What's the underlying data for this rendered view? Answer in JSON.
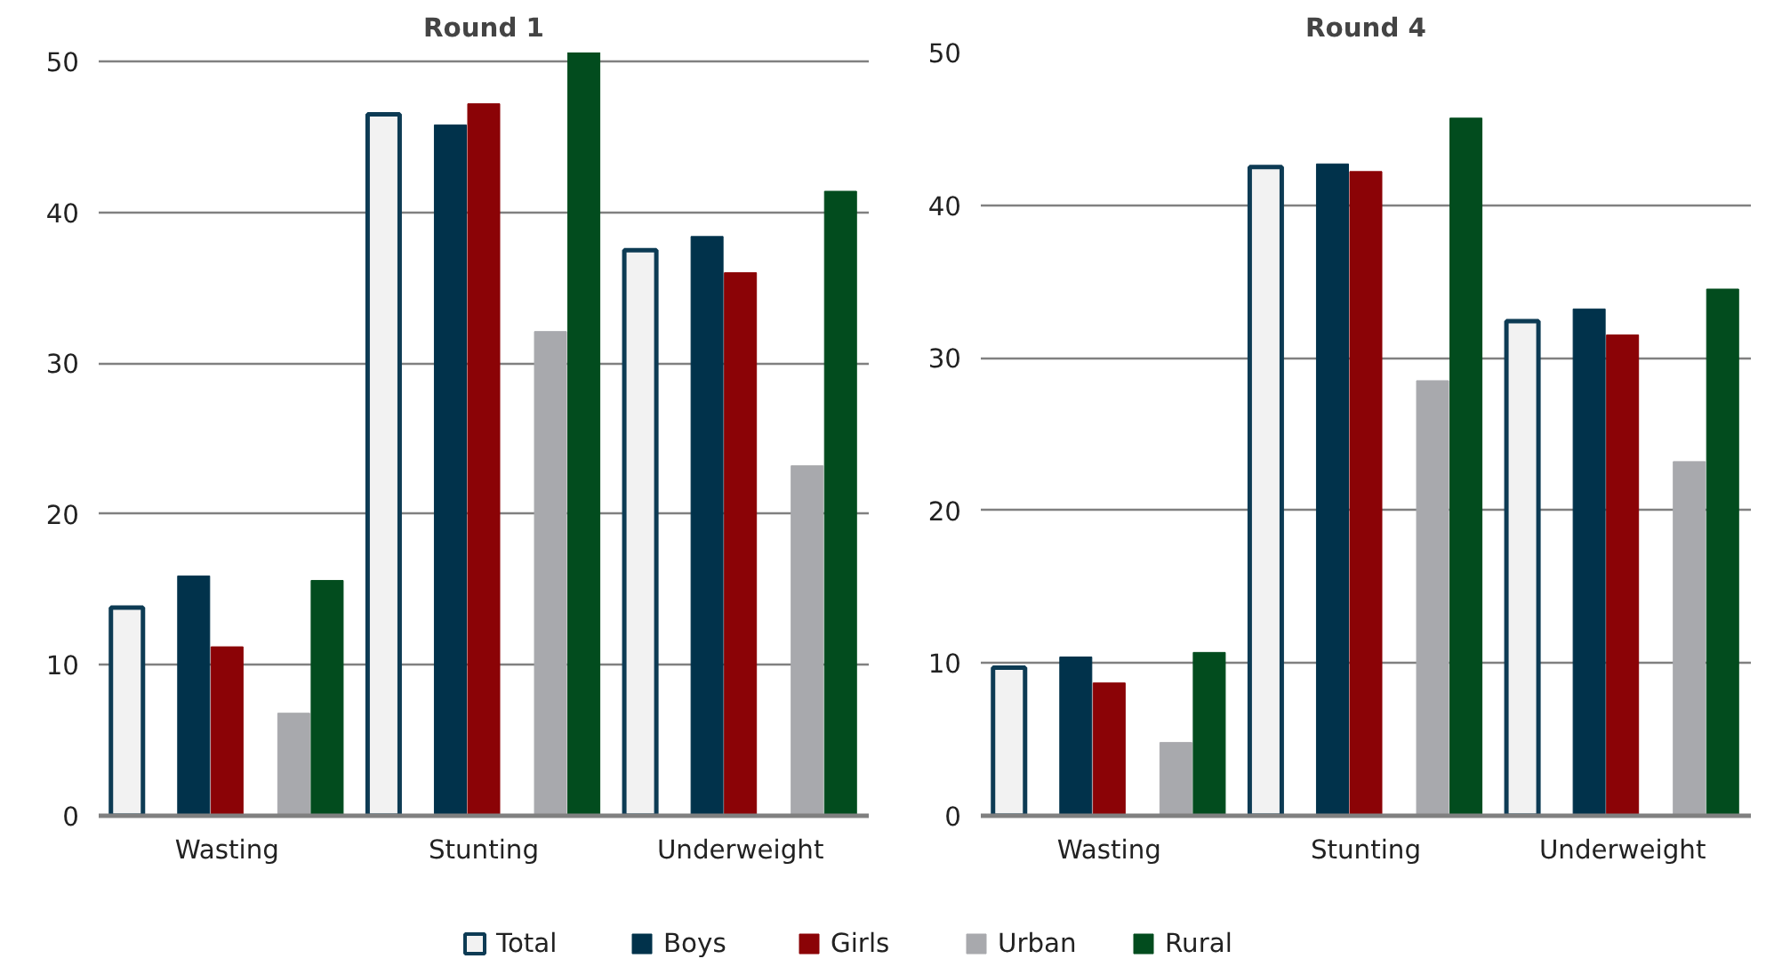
{
  "chart_data": [
    {
      "type": "bar",
      "title": "Round 1",
      "categories": [
        "Wasting",
        "Stunting",
        "Underweight"
      ],
      "ylim": [
        0,
        50.6
      ],
      "yticks": [
        0,
        10,
        20,
        30,
        40,
        50
      ],
      "grid": "y",
      "legend": "bottom",
      "series": [
        {
          "name": "Total",
          "color": "#f2f2f2",
          "values": [
            13.8,
            46.5,
            37.5
          ]
        },
        {
          "name": "Boys",
          "color": "#01324b",
          "values": [
            15.9,
            45.8,
            38.4
          ]
        },
        {
          "name": "Girls",
          "color": "#8b0306",
          "values": [
            11.2,
            47.2,
            36.0
          ]
        },
        {
          "name": "Urban",
          "color": "#a8a9ad",
          "values": [
            6.8,
            32.1,
            23.2
          ]
        },
        {
          "name": "Rural",
          "color": "#024c1e",
          "values": [
            15.6,
            50.6,
            41.4
          ]
        }
      ]
    },
    {
      "type": "bar",
      "title": "Round 4",
      "categories": [
        "Wasting",
        "Stunting",
        "Underweight"
      ],
      "ylim": [
        0,
        50
      ],
      "yticks": [
        0,
        10,
        20,
        30,
        40,
        50
      ],
      "grid": "y",
      "series": [
        {
          "color": "#f2f2f2",
          "values": [
            9.7,
            42.5,
            32.4
          ]
        },
        {
          "color": "#01324b",
          "values": [
            10.4,
            42.7,
            33.2
          ]
        },
        {
          "color": "#8b0306",
          "values": [
            8.7,
            42.2,
            31.5
          ]
        },
        {
          "color": "#a8a9ad",
          "values": [
            4.8,
            28.5,
            23.2
          ]
        },
        {
          "color": "#024c1e",
          "values": [
            10.7,
            45.7,
            34.5
          ]
        }
      ]
    }
  ]
}
